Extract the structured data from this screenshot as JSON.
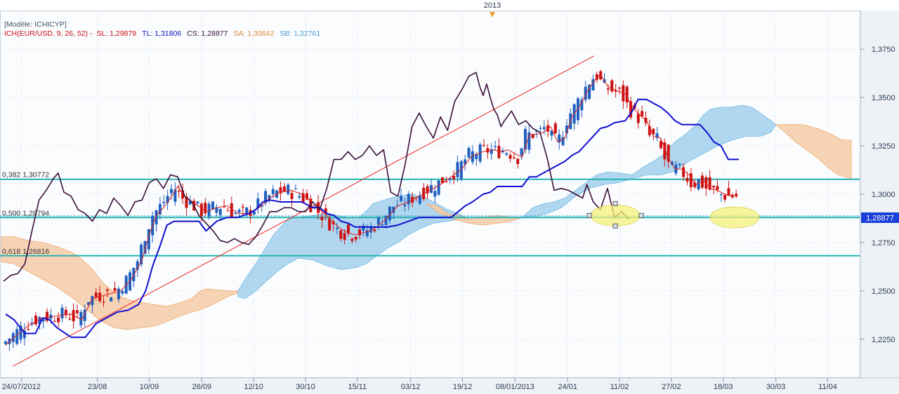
{
  "header": {
    "model": "[Modèle: ICHICYP]",
    "indicator": "ICH(EUR/USD, 9, 26, 52) -",
    "sl": "SL: 1,29879",
    "tl": "TL: 1,31806",
    "cs": "CS: 1,28877",
    "sa": "SA: 1,30842",
    "sb": "SB: 1,32761"
  },
  "colors": {
    "candle_up": "#1f5fbf",
    "candle_down": "#cc1111",
    "tenkan": "#e02020",
    "kijun": "#1010d0",
    "chikou": "#3a0f3a",
    "kumo_bull": "#a9d4ee",
    "kumo_bear": "#f7cfae",
    "fib": "#22b3b3",
    "trendline": "#ee2222",
    "highlight": "#f6f27a"
  },
  "chart_data": {
    "type": "line",
    "instrument": "EUR/USD",
    "year_marker": "2013",
    "price_tag": "1,28877",
    "ylim": [
      1.205,
      1.395
    ],
    "xlim": [
      0,
      1210
    ],
    "y_ticks": [
      "1,2250",
      "1,2500",
      "1,2750",
      "1,3000",
      "1,3250",
      "1,3500",
      "1,3750"
    ],
    "y_tick_values": [
      1.225,
      1.25,
      1.275,
      1.3,
      1.325,
      1.35,
      1.375
    ],
    "x_ticks": [
      "24/07/2012",
      "23/08",
      "10/09",
      "26/09",
      "12/10",
      "30/10",
      "15/11",
      "03/12",
      "19/12",
      "08/01/2013",
      "24/01",
      "11/02",
      "27/02",
      "18/03",
      "30/03",
      "11/04"
    ],
    "x_tick_pos": [
      30,
      137,
      210,
      284,
      357,
      430,
      503,
      578,
      651,
      725,
      799,
      872,
      945,
      1018,
      1092,
      1165
    ],
    "fib_levels": [
      {
        "label": "0,382 1,30772",
        "value": 1.30772
      },
      {
        "label": "0,500 1,28794",
        "value": 1.28794
      },
      {
        "label": "0,618 1,26816",
        "value": 1.26816
      }
    ],
    "series": [
      {
        "name": "SL: 1,29879",
        "points": [
          [
            8,
            1.222
          ],
          [
            20,
            1.226
          ],
          [
            40,
            1.232
          ],
          [
            60,
            1.236
          ],
          [
            80,
            1.237
          ],
          [
            100,
            1.238
          ],
          [
            115,
            1.235
          ],
          [
            130,
            1.246
          ],
          [
            150,
            1.248
          ],
          [
            170,
            1.25
          ],
          [
            185,
            1.256
          ],
          [
            200,
            1.266
          ],
          [
            210,
            1.279
          ],
          [
            220,
            1.289
          ],
          [
            230,
            1.293
          ],
          [
            240,
            1.298
          ],
          [
            250,
            1.304
          ],
          [
            262,
            1.298
          ],
          [
            275,
            1.295
          ],
          [
            290,
            1.291
          ],
          [
            305,
            1.293
          ],
          [
            320,
            1.294
          ],
          [
            335,
            1.29
          ],
          [
            350,
            1.29
          ],
          [
            365,
            1.293
          ],
          [
            380,
            1.298
          ],
          [
            395,
            1.301
          ],
          [
            410,
            1.302
          ],
          [
            425,
            1.3
          ],
          [
            440,
            1.296
          ],
          [
            450,
            1.292
          ],
          [
            460,
            1.289
          ],
          [
            470,
            1.285
          ],
          [
            480,
            1.282
          ],
          [
            490,
            1.28
          ],
          [
            500,
            1.279
          ],
          [
            510,
            1.28
          ],
          [
            520,
            1.281
          ],
          [
            530,
            1.283
          ],
          [
            540,
            1.286
          ],
          [
            550,
            1.29
          ],
          [
            560,
            1.294
          ],
          [
            575,
            1.296
          ],
          [
            590,
            1.299
          ],
          [
            605,
            1.302
          ],
          [
            620,
            1.305
          ],
          [
            635,
            1.309
          ],
          [
            650,
            1.313
          ],
          [
            665,
            1.32
          ],
          [
            680,
            1.322
          ],
          [
            695,
            1.323
          ],
          [
            705,
            1.322
          ],
          [
            715,
            1.323
          ],
          [
            725,
            1.321
          ],
          [
            735,
            1.319
          ],
          [
            745,
            1.331
          ],
          [
            755,
            1.331
          ],
          [
            765,
            1.332
          ],
          [
            775,
            1.335
          ],
          [
            785,
            1.327
          ],
          [
            795,
            1.329
          ],
          [
            805,
            1.34
          ],
          [
            815,
            1.345
          ],
          [
            825,
            1.352
          ],
          [
            835,
            1.358
          ],
          [
            845,
            1.362
          ],
          [
            855,
            1.356
          ],
          [
            865,
            1.354
          ],
          [
            880,
            1.352
          ],
          [
            890,
            1.345
          ],
          [
            900,
            1.341
          ],
          [
            910,
            1.338
          ],
          [
            920,
            1.33
          ],
          [
            930,
            1.329
          ],
          [
            940,
            1.319
          ],
          [
            950,
            1.313
          ],
          [
            960,
            1.313
          ],
          [
            970,
            1.31
          ],
          [
            980,
            1.305
          ],
          [
            990,
            1.307
          ],
          [
            1000,
            1.303
          ],
          [
            1010,
            1.302
          ],
          [
            1020,
            1.3
          ],
          [
            1030,
            1.299
          ]
        ]
      },
      {
        "name": "TL: 1,31806",
        "points": [
          [
            8,
            1.238
          ],
          [
            20,
            1.235
          ],
          [
            35,
            1.228
          ],
          [
            50,
            1.228
          ],
          [
            60,
            1.236
          ],
          [
            70,
            1.235
          ],
          [
            80,
            1.231
          ],
          [
            100,
            1.226
          ],
          [
            120,
            1.226
          ],
          [
            135,
            1.233
          ],
          [
            150,
            1.236
          ],
          [
            165,
            1.239
          ],
          [
            180,
            1.24
          ],
          [
            195,
            1.243
          ],
          [
            205,
            1.25
          ],
          [
            215,
            1.263
          ],
          [
            225,
            1.273
          ],
          [
            235,
            1.284
          ],
          [
            245,
            1.286
          ],
          [
            255,
            1.286
          ],
          [
            265,
            1.286
          ],
          [
            280,
            1.286
          ],
          [
            290,
            1.281
          ],
          [
            305,
            1.286
          ],
          [
            320,
            1.288
          ],
          [
            335,
            1.288
          ],
          [
            350,
            1.29
          ],
          [
            360,
            1.292
          ],
          [
            370,
            1.296
          ],
          [
            380,
            1.297
          ],
          [
            395,
            1.296
          ],
          [
            410,
            1.296
          ],
          [
            425,
            1.296
          ],
          [
            440,
            1.293
          ],
          [
            450,
            1.293
          ],
          [
            460,
            1.29
          ],
          [
            470,
            1.289
          ],
          [
            480,
            1.286
          ],
          [
            490,
            1.285
          ],
          [
            500,
            1.283
          ],
          [
            510,
            1.283
          ],
          [
            520,
            1.283
          ],
          [
            530,
            1.283
          ],
          [
            545,
            1.283
          ],
          [
            560,
            1.284
          ],
          [
            575,
            1.286
          ],
          [
            590,
            1.288
          ],
          [
            605,
            1.288
          ],
          [
            620,
            1.288
          ],
          [
            635,
            1.288
          ],
          [
            645,
            1.291
          ],
          [
            655,
            1.294
          ],
          [
            665,
            1.296
          ],
          [
            680,
            1.3
          ],
          [
            690,
            1.301
          ],
          [
            700,
            1.304
          ],
          [
            710,
            1.304
          ],
          [
            720,
            1.304
          ],
          [
            735,
            1.304
          ],
          [
            745,
            1.309
          ],
          [
            755,
            1.309
          ],
          [
            770,
            1.312
          ],
          [
            785,
            1.315
          ],
          [
            795,
            1.317
          ],
          [
            805,
            1.32
          ],
          [
            815,
            1.322
          ],
          [
            825,
            1.326
          ],
          [
            835,
            1.33
          ],
          [
            845,
            1.334
          ],
          [
            855,
            1.335
          ],
          [
            865,
            1.337
          ],
          [
            880,
            1.338
          ],
          [
            890,
            1.343
          ],
          [
            898,
            1.349
          ],
          [
            910,
            1.349
          ],
          [
            920,
            1.347
          ],
          [
            930,
            1.345
          ],
          [
            940,
            1.342
          ],
          [
            950,
            1.338
          ],
          [
            960,
            1.336
          ],
          [
            970,
            1.336
          ],
          [
            985,
            1.336
          ],
          [
            995,
            1.332
          ],
          [
            1005,
            1.327
          ],
          [
            1015,
            1.325
          ],
          [
            1025,
            1.318
          ],
          [
            1040,
            1.318
          ]
        ]
      },
      {
        "name": "CS: 1,28877",
        "points": [
          [
            5,
            1.255
          ],
          [
            15,
            1.258
          ],
          [
            25,
            1.259
          ],
          [
            35,
            1.264
          ],
          [
            45,
            1.281
          ],
          [
            55,
            1.297
          ],
          [
            65,
            1.302
          ],
          [
            75,
            1.308
          ],
          [
            82,
            1.311
          ],
          [
            90,
            1.301
          ],
          [
            100,
            1.299
          ],
          [
            110,
            1.292
          ],
          [
            120,
            1.29
          ],
          [
            130,
            1.286
          ],
          [
            140,
            1.292
          ],
          [
            150,
            1.29
          ],
          [
            160,
            1.298
          ],
          [
            170,
            1.294
          ],
          [
            180,
            1.289
          ],
          [
            190,
            1.296
          ],
          [
            200,
            1.297
          ],
          [
            210,
            1.306
          ],
          [
            220,
            1.308
          ],
          [
            230,
            1.303
          ],
          [
            240,
            1.31
          ],
          [
            250,
            1.309
          ],
          [
            260,
            1.299
          ],
          [
            270,
            1.296
          ],
          [
            280,
            1.289
          ],
          [
            290,
            1.285
          ],
          [
            300,
            1.281
          ],
          [
            310,
            1.276
          ],
          [
            320,
            1.275
          ],
          [
            330,
            1.277
          ],
          [
            340,
            1.275
          ],
          [
            350,
            1.274
          ],
          [
            360,
            1.278
          ],
          [
            370,
            1.284
          ],
          [
            380,
            1.291
          ],
          [
            390,
            1.291
          ],
          [
            400,
            1.293
          ],
          [
            410,
            1.293
          ],
          [
            420,
            1.291
          ],
          [
            430,
            1.291
          ],
          [
            440,
            1.296
          ],
          [
            450,
            1.292
          ],
          [
            460,
            1.303
          ],
          [
            470,
            1.318
          ],
          [
            480,
            1.318
          ],
          [
            490,
            1.322
          ],
          [
            500,
            1.318
          ],
          [
            510,
            1.32
          ],
          [
            520,
            1.325
          ],
          [
            530,
            1.32
          ],
          [
            540,
            1.323
          ],
          [
            550,
            1.301
          ],
          [
            560,
            1.299
          ],
          [
            570,
            1.315
          ],
          [
            580,
            1.335
          ],
          [
            590,
            1.342
          ],
          [
            600,
            1.335
          ],
          [
            610,
            1.329
          ],
          [
            620,
            1.34
          ],
          [
            630,
            1.333
          ],
          [
            640,
            1.348
          ],
          [
            650,
            1.354
          ],
          [
            660,
            1.361
          ],
          [
            670,
            1.363
          ],
          [
            675,
            1.356
          ],
          [
            680,
            1.351
          ],
          [
            685,
            1.357
          ],
          [
            690,
            1.35
          ],
          [
            695,
            1.344
          ],
          [
            700,
            1.341
          ],
          [
            705,
            1.335
          ],
          [
            710,
            1.338
          ],
          [
            720,
            1.343
          ],
          [
            730,
            1.336
          ],
          [
            740,
            1.338
          ],
          [
            750,
            1.334
          ],
          [
            760,
            1.332
          ],
          [
            770,
            1.319
          ],
          [
            780,
            1.302
          ],
          [
            790,
            1.303
          ],
          [
            800,
            1.302
          ],
          [
            810,
            1.3
          ],
          [
            820,
            1.298
          ],
          [
            826,
            1.305
          ],
          [
            835,
            1.296
          ],
          [
            845,
            1.292
          ],
          [
            855,
            1.303
          ],
          [
            865,
            1.288
          ],
          [
            875,
            1.291
          ],
          [
            885,
            1.287
          ]
        ]
      }
    ],
    "annotation_ellipses": [
      {
        "cx": 866,
        "value": 1.289
      },
      {
        "cx": 1034,
        "value": 1.288
      }
    ]
  }
}
